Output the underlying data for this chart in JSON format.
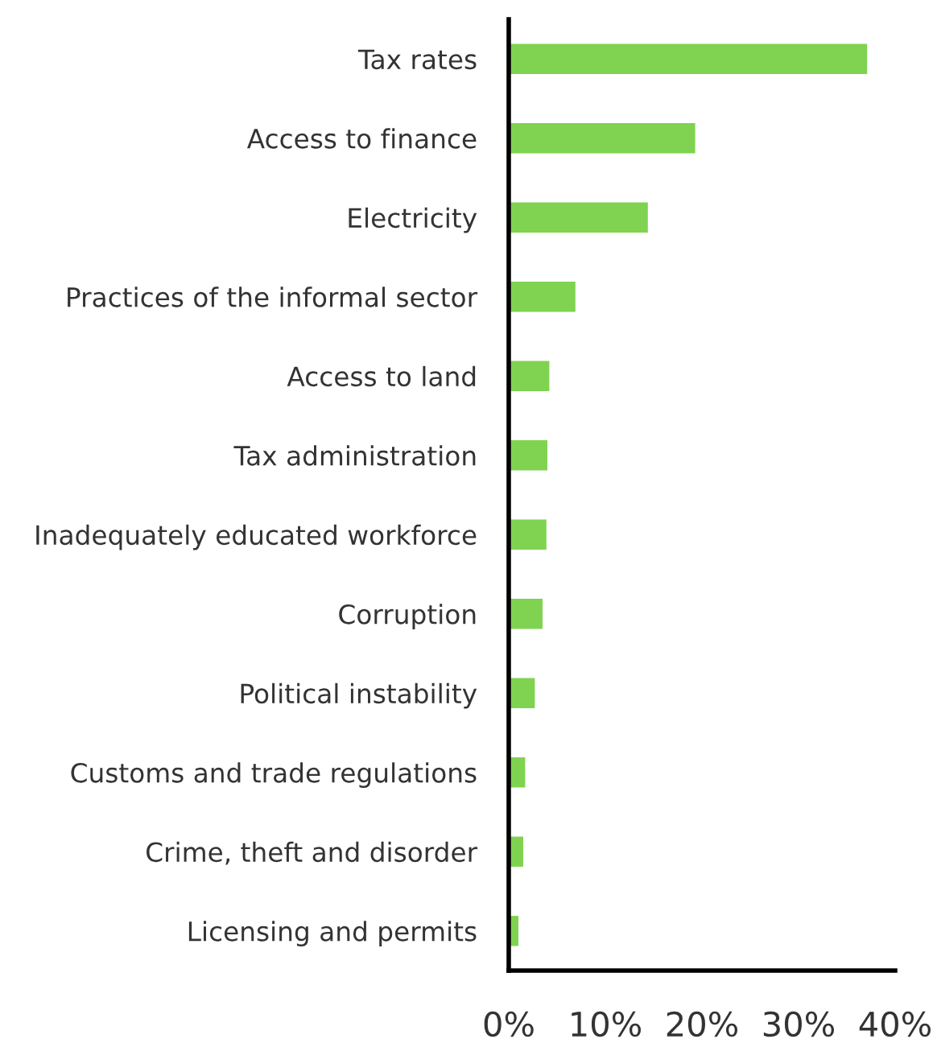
{
  "chart_data": {
    "type": "bar",
    "orientation": "horizontal",
    "categories": [
      "Tax rates",
      "Access to finance",
      "Electricity",
      "Practices of the informal sector",
      "Access to land",
      "Tax administration",
      "Inadequately educated workforce",
      "Corruption",
      "Political instability",
      "Customs and trade regulations",
      "Crime, theft and disorder",
      "Licensing and permits"
    ],
    "values": [
      37.1,
      19.3,
      14.4,
      6.9,
      4.2,
      4.0,
      3.9,
      3.5,
      2.7,
      1.7,
      1.5,
      1.0
    ],
    "color": "#7fd350",
    "xlim": [
      0,
      40
    ],
    "xticks": [
      {
        "value": 0,
        "label": "0%"
      },
      {
        "value": 10,
        "label": "10%"
      },
      {
        "value": 20,
        "label": "20%"
      },
      {
        "value": 30,
        "label": "30%"
      },
      {
        "value": 40,
        "label": "40%"
      }
    ],
    "grid": false
  }
}
